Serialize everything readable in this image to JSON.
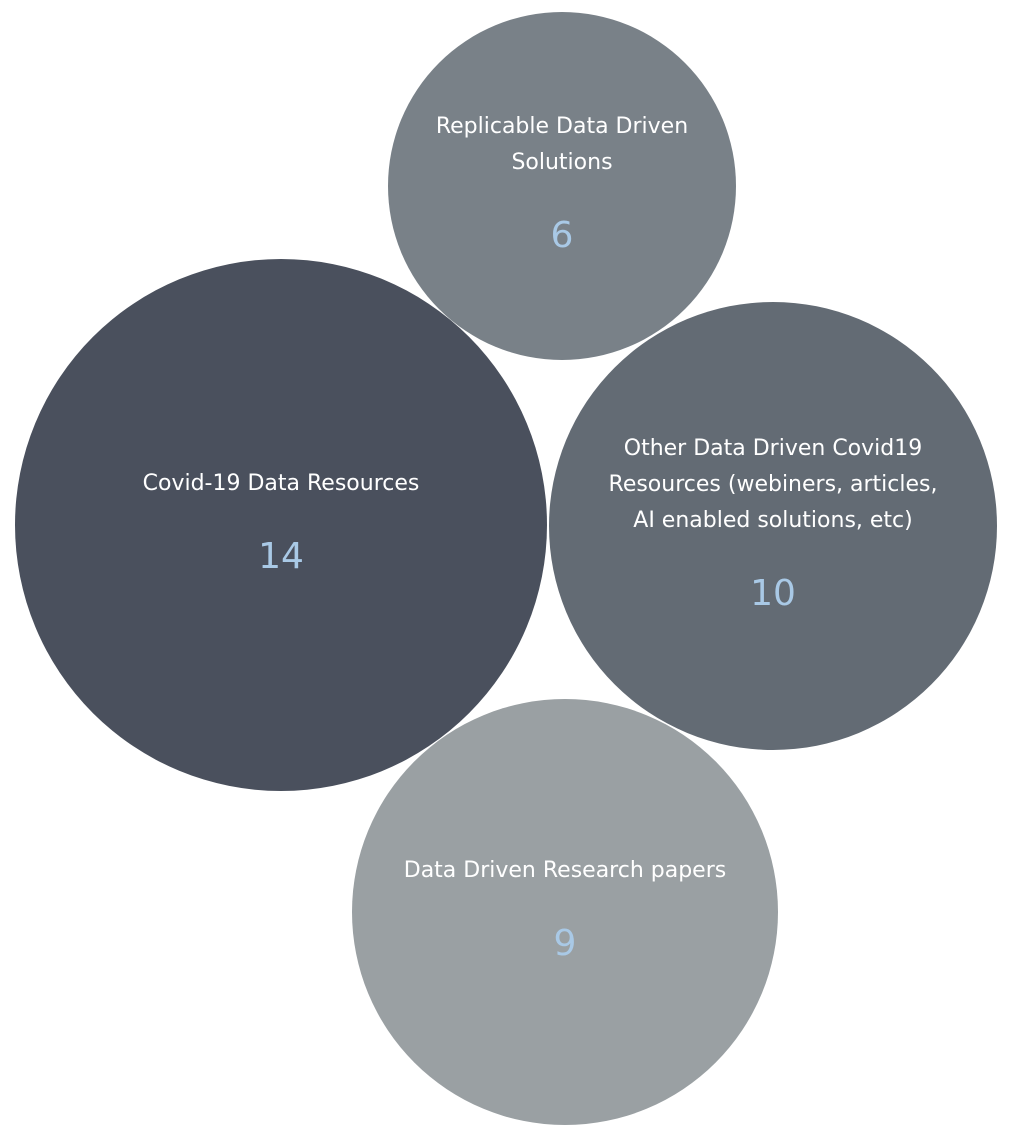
{
  "chart_data": {
    "type": "bubble",
    "label_color": "#ffffff",
    "value_color": "#a9c9e6",
    "bubbles": [
      {
        "label": "Replicable Data Driven Solutions",
        "label_lines": [
          "Replicable Data Driven",
          "Solutions"
        ],
        "value": 6,
        "color": "#798188"
      },
      {
        "label": "Covid-19 Data Resources",
        "label_lines": [
          "Covid-19 Data Resources"
        ],
        "value": 14,
        "color": "#4a505d"
      },
      {
        "label": "Other Data Driven Covid19 Resources (webiners, articles, AI enabled solutions, etc)",
        "label_lines": [
          "Other Data Driven Covid19",
          "Resources (webiners, articles,",
          "AI enabled solutions, etc)"
        ],
        "value": 10,
        "color": "#636b74"
      },
      {
        "label": "Data Driven Research papers",
        "label_lines": [
          "Data Driven Research papers"
        ],
        "value": 9,
        "color": "#9aa0a3"
      }
    ]
  }
}
